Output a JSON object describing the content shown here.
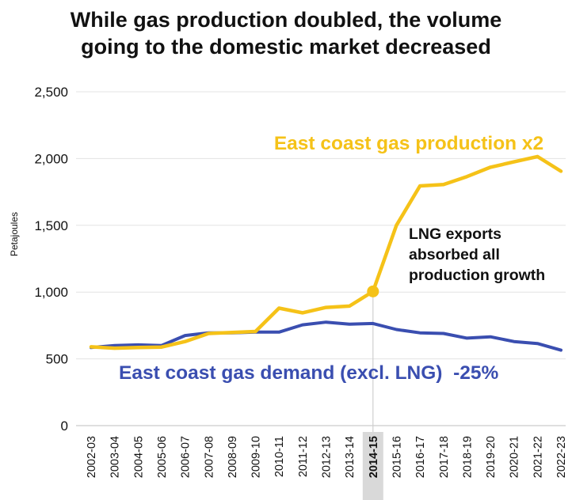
{
  "chart_data": {
    "type": "line",
    "title_lines": [
      "While gas production doubled, the volume",
      "going to the domestic market decreased"
    ],
    "ylabel": "Petajoules",
    "xlabel": "",
    "ylim": [
      0,
      2500
    ],
    "yticks": [
      0,
      500,
      1000,
      1500,
      2000,
      2500
    ],
    "ytick_labels": [
      "0",
      "500",
      "1,000",
      "1,500",
      "2,000",
      "2,500"
    ],
    "grid": "horizontal",
    "categories": [
      "2002-03",
      "2003-04",
      "2004-05",
      "2005-06",
      "2006-07",
      "2007-08",
      "2008-09",
      "2009-10",
      "2010-11",
      "2011-12",
      "2012-13",
      "2013-14",
      "2014-15",
      "2015-16",
      "2016-17",
      "2017-18",
      "2018-19",
      "2019-20",
      "2020-21",
      "2021-22",
      "2022-23"
    ],
    "highlight_category": "2014-15",
    "series": [
      {
        "name": "East coast gas production",
        "label": "East coast gas production x2",
        "color": "#F5C218",
        "values": [
          590,
          580,
          585,
          588,
          630,
          690,
          698,
          705,
          880,
          845,
          885,
          895,
          1005,
          1500,
          1795,
          1805,
          1865,
          1935,
          1975,
          2015,
          1905
        ]
      },
      {
        "name": "East coast gas demand (excl. LNG)",
        "label": "East coast gas demand (excl. LNG)  -25%",
        "color": "#3A4EB0",
        "values": [
          585,
          600,
          605,
          600,
          675,
          695,
          695,
          700,
          700,
          755,
          775,
          760,
          765,
          720,
          695,
          690,
          655,
          665,
          630,
          615,
          565
        ]
      }
    ],
    "annotations": [
      {
        "text_lines": [
          "LNG exports",
          "absorbed all",
          "production growth"
        ]
      }
    ],
    "marker": {
      "series": 0,
      "category": "2014-15"
    }
  }
}
